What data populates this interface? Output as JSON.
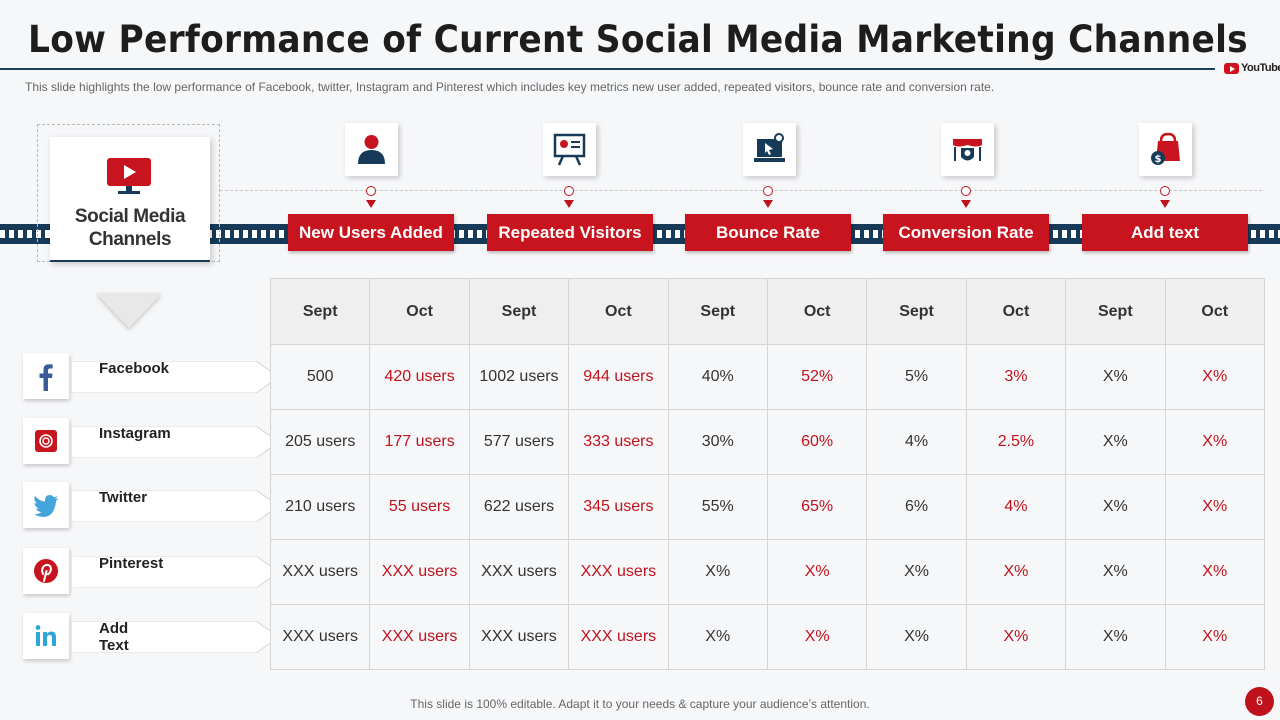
{
  "header": {
    "title": "Low Performance of Current Social Media Marketing Channels",
    "subtitle": "This slide highlights the low performance  of Facebook, twitter, Instagram and Pinterest which includes key metrics new user added, repeated visitors, bounce rate and conversion  rate.",
    "logo_text": "YouTube"
  },
  "channels_card": {
    "label_line1": "Social Media",
    "label_line2": "Channels",
    "icon": "youtube-monitor-icon"
  },
  "metrics": [
    {
      "label": "New Users Added",
      "icon": "user-icon"
    },
    {
      "label": "Repeated Visitors",
      "icon": "presentation-board-icon"
    },
    {
      "label": "Bounce Rate",
      "icon": "laptop-pointer-icon"
    },
    {
      "label": "Conversion Rate",
      "icon": "store-shield-icon"
    },
    {
      "label": "Add text",
      "icon": "shopping-bag-dollar-icon"
    }
  ],
  "table": {
    "headers": [
      "Sept",
      "Oct",
      "Sept",
      "Oct",
      "Sept",
      "Oct",
      "Sept",
      "Oct",
      "Sept",
      "Oct"
    ],
    "rows": [
      {
        "channel": "Facebook",
        "icon": "facebook-icon",
        "cells": [
          "500",
          "420 users",
          "1002 users",
          "944 users",
          "40%",
          "52%",
          "5%",
          "3%",
          "X%",
          "X%"
        ]
      },
      {
        "channel": "Instagram",
        "icon": "instagram-icon",
        "cells": [
          "205 users",
          "177 users",
          "577 users",
          "333 users",
          "30%",
          "60%",
          "4%",
          "2.5%",
          "X%",
          "X%"
        ]
      },
      {
        "channel": "Twitter",
        "icon": "twitter-icon",
        "cells": [
          "210 users",
          "55 users",
          "622 users",
          "345 users",
          "55%",
          "65%",
          "6%",
          "4%",
          "X%",
          "X%"
        ]
      },
      {
        "channel": "Pinterest",
        "icon": "pinterest-icon",
        "cells": [
          "XXX users",
          "XXX users",
          "XXX users",
          "XXX users",
          "X%",
          "X%",
          "X%",
          "X%",
          "X%",
          "X%"
        ]
      },
      {
        "channel": "Add  Text",
        "icon": "linkedin-icon",
        "cells": [
          "XXX users",
          "XXX users",
          "XXX users",
          "XXX users",
          "X%",
          "X%",
          "X%",
          "X%",
          "X%",
          "X%"
        ]
      }
    ]
  },
  "footer": {
    "text": "This slide is 100% editable. Adapt it to your needs & capture your audience’s attention.",
    "page_number": "6"
  },
  "colors": {
    "accent": "#c8141f",
    "navy": "#163a57",
    "october_text": "#c0121c"
  }
}
